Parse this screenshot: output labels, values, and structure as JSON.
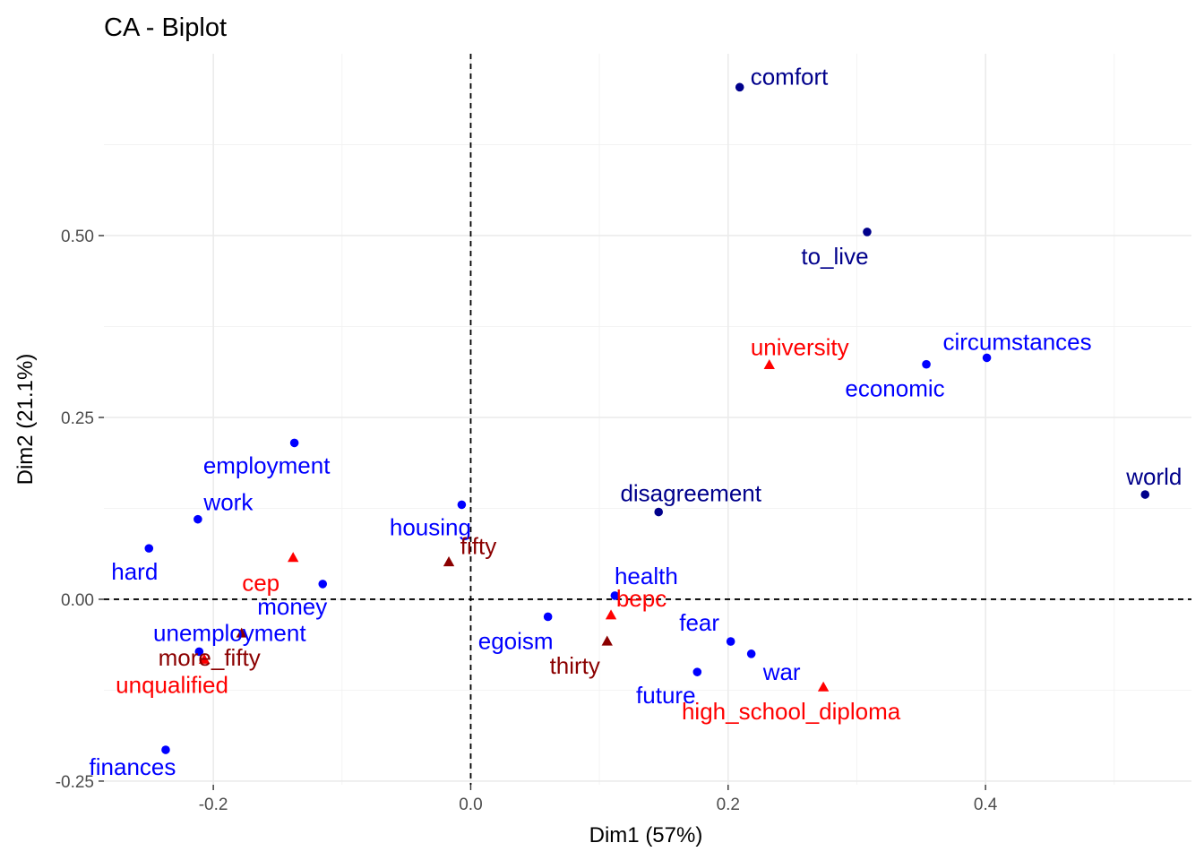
{
  "chart_data": {
    "type": "scatter",
    "title": "CA - Biplot",
    "xlabel": "Dim1 (57%)",
    "ylabel": "Dim2 (21.1%)",
    "xlim": [
      -0.285,
      0.56
    ],
    "ylim": [
      -0.255,
      0.75
    ],
    "x_ticks": [
      {
        "v": -0.2,
        "label": "-0.2"
      },
      {
        "v": 0,
        "label": "0.0"
      },
      {
        "v": 0.2,
        "label": "0.2"
      },
      {
        "v": 0.4,
        "label": "0.4"
      }
    ],
    "y_ticks": [
      {
        "v": -0.25,
        "label": "-0.25"
      },
      {
        "v": 0,
        "label": "0.00"
      },
      {
        "v": 0.25,
        "label": "0.25"
      },
      {
        "v": 0.5,
        "label": "0.50"
      }
    ],
    "grid": true,
    "reference_lines": {
      "x": 0,
      "y": 0,
      "style": "dashed"
    },
    "legend": "none",
    "series": [
      {
        "marker": "circle",
        "points": [
          {
            "label": "comfort",
            "x": 0.209,
            "y": 0.704,
            "color": "#00008b",
            "anchor": "start",
            "dx": 12,
            "dy": -3
          },
          {
            "label": "to_live",
            "x": 0.308,
            "y": 0.505,
            "color": "#00008b",
            "anchor": "middle",
            "dx": -36,
            "dy": 36
          },
          {
            "label": "circumstances",
            "x": 0.401,
            "y": 0.332,
            "color": "#0000ff",
            "anchor": "middle",
            "dx": 34,
            "dy": -9
          },
          {
            "label": "economic",
            "x": 0.354,
            "y": 0.323,
            "color": "#0000ff",
            "anchor": "middle",
            "dx": -35,
            "dy": 36
          },
          {
            "label": "world",
            "x": 0.524,
            "y": 0.144,
            "color": "#00008b",
            "anchor": "middle",
            "dx": 10,
            "dy": -11
          },
          {
            "label": "disagreement",
            "x": 0.146,
            "y": 0.12,
            "color": "#00008b",
            "anchor": "middle",
            "dx": 36,
            "dy": -12
          },
          {
            "label": "employment",
            "x": -0.137,
            "y": 0.215,
            "color": "#0000ff",
            "anchor": "middle",
            "dx": -31,
            "dy": 34
          },
          {
            "label": "work",
            "x": -0.212,
            "y": 0.11,
            "color": "#0000ff",
            "anchor": "middle",
            "dx": 34,
            "dy": -10
          },
          {
            "label": "housing",
            "x": -0.007,
            "y": 0.13,
            "color": "#0000ff",
            "anchor": "middle",
            "dx": -35,
            "dy": 34
          },
          {
            "label": "hard",
            "x": -0.25,
            "y": 0.07,
            "color": "#0000ff",
            "anchor": "middle",
            "dx": -16,
            "dy": 35
          },
          {
            "label": "money",
            "x": -0.115,
            "y": 0.021,
            "color": "#0000ff",
            "anchor": "middle",
            "dx": -34,
            "dy": 34
          },
          {
            "label": "health",
            "x": 0.112,
            "y": 0.005,
            "color": "#0000ff",
            "anchor": "middle",
            "dx": 35,
            "dy": -13
          },
          {
            "label": "egoism",
            "x": 0.06,
            "y": -0.024,
            "color": "#0000ff",
            "anchor": "middle",
            "dx": -36,
            "dy": 36
          },
          {
            "label": "fear",
            "x": 0.202,
            "y": -0.058,
            "color": "#0000ff",
            "anchor": "middle",
            "dx": -35,
            "dy": -12
          },
          {
            "label": "war",
            "x": 0.218,
            "y": -0.075,
            "color": "#0000ff",
            "anchor": "middle",
            "dx": 34,
            "dy": 29
          },
          {
            "label": "future",
            "x": 0.176,
            "y": -0.1,
            "color": "#0000ff",
            "anchor": "middle",
            "dx": -35,
            "dy": 35
          },
          {
            "label": "unemployment",
            "x": -0.211,
            "y": -0.072,
            "color": "#0000ff",
            "anchor": "middle",
            "dx": 34,
            "dy": -12
          },
          {
            "label": "finances",
            "x": -0.237,
            "y": -0.207,
            "color": "#0000ff",
            "anchor": "middle",
            "dx": -37,
            "dy": 28
          }
        ]
      },
      {
        "marker": "triangle",
        "points": [
          {
            "label": "university",
            "x": 0.232,
            "y": 0.322,
            "color": "#ff0000",
            "anchor": "middle",
            "dx": 34,
            "dy": -11
          },
          {
            "label": "cep",
            "x": -0.138,
            "y": 0.057,
            "color": "#ff0000",
            "anchor": "middle",
            "dx": -36,
            "dy": 37
          },
          {
            "label": "fifty",
            "x": -0.017,
            "y": 0.051,
            "color": "#8b0000",
            "anchor": "middle",
            "dx": 33,
            "dy": -9
          },
          {
            "label": "bepc",
            "x": 0.109,
            "y": -0.022,
            "color": "#ff0000",
            "anchor": "middle",
            "dx": 34,
            "dy": -10
          },
          {
            "label": "thirty",
            "x": 0.106,
            "y": -0.058,
            "color": "#8b0000",
            "anchor": "middle",
            "dx": -36,
            "dy": 36
          },
          {
            "label": "high_school_diploma",
            "x": 0.274,
            "y": -0.121,
            "color": "#ff0000",
            "anchor": "middle",
            "dx": -36,
            "dy": 36
          },
          {
            "label": "more_fifty",
            "x": -0.178,
            "y": -0.047,
            "color": "#8b0000",
            "anchor": "middle",
            "dx": -36,
            "dy": 36
          },
          {
            "label": "unqualified",
            "x": -0.207,
            "y": -0.083,
            "color": "#ff0000",
            "anchor": "middle",
            "dx": -36,
            "dy": 37
          }
        ]
      }
    ]
  }
}
